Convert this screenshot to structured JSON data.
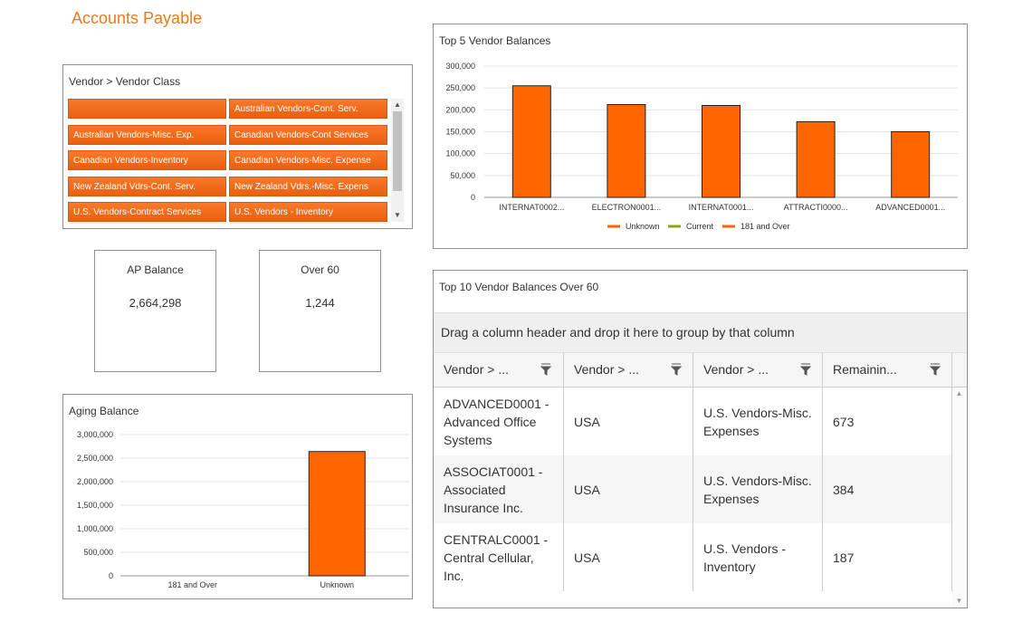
{
  "page_title": "Accounts Payable",
  "vendor_class": {
    "title": "Vendor > Vendor Class",
    "items": [
      "",
      "Australian Vendors-Cont. Serv.",
      "Australian Vendors-Misc. Exp.",
      "Canadian Vendors-Cont Services",
      "Canadian Vendors-Inventory",
      "Canadian Vendors-Misc. Expense",
      "New Zealand Vdrs-Cont. Serv.",
      "New Zealand Vdrs.-Misc. Expens",
      "U.S. Vendors-Contract Services",
      "U.S. Vendors - Inventory"
    ],
    "tile_color": "#f26d1f"
  },
  "kpis": {
    "ap_balance": {
      "label": "AP Balance",
      "value": "2,664,298"
    },
    "over_60": {
      "label": "Over 60",
      "value": "1,244"
    }
  },
  "top5_chart": {
    "chart_data": {
      "type": "bar",
      "title": "Top 5 Vendor Balances",
      "categories": [
        "INTERNAT0002...",
        "ELECTRON0001...",
        "INTERNAT0001...",
        "ATTRACTI0000...",
        "ADVANCED0001..."
      ],
      "series": [
        {
          "name": "Unknown",
          "color": "#ff6600",
          "values": [
            255000,
            212000,
            210000,
            173000,
            150000
          ]
        },
        {
          "name": "Current",
          "color": "#8aa61f",
          "values": [
            0,
            0,
            0,
            0,
            0
          ]
        },
        {
          "name": "181 and Over",
          "color": "#ff6600",
          "values": [
            0,
            0,
            0,
            0,
            0
          ]
        }
      ],
      "y_ticks": [
        "0",
        "50,000",
        "100,000",
        "150,000",
        "200,000",
        "250,000",
        "300,000"
      ],
      "ylim": [
        0,
        300000
      ],
      "grid": true,
      "legend": "bottom"
    }
  },
  "aging_chart": {
    "chart_data": {
      "type": "bar",
      "title": "Aging Balance",
      "categories": [
        "181 and Over",
        "Unknown"
      ],
      "values": [
        0,
        2640000
      ],
      "color": "#ff6600",
      "y_ticks": [
        "0",
        "500,000",
        "1,000,000",
        "1,500,000",
        "2,000,000",
        "2,500,000",
        "3,000,000"
      ],
      "ylim": [
        0,
        3000000
      ],
      "grid": true
    }
  },
  "top10_grid": {
    "title": "Top 10 Vendor Balances Over 60",
    "group_prompt": "Drag a column header and drop it here to group by that column",
    "columns": [
      "Vendor > ...",
      "Vendor > ...",
      "Vendor > ...",
      "Remainin..."
    ],
    "rows": [
      [
        "ADVANCED0001 - Advanced Office Systems",
        "USA",
        "U.S. Vendors-Misc. Expenses",
        "673"
      ],
      [
        "ASSOCIAT0001 - Associated Insurance Inc.",
        "USA",
        "U.S. Vendors-Misc. Expenses",
        "384"
      ],
      [
        "CENTRALC0001 - Central Cellular, Inc.",
        "USA",
        "U.S. Vendors - Inventory",
        "187"
      ]
    ]
  }
}
